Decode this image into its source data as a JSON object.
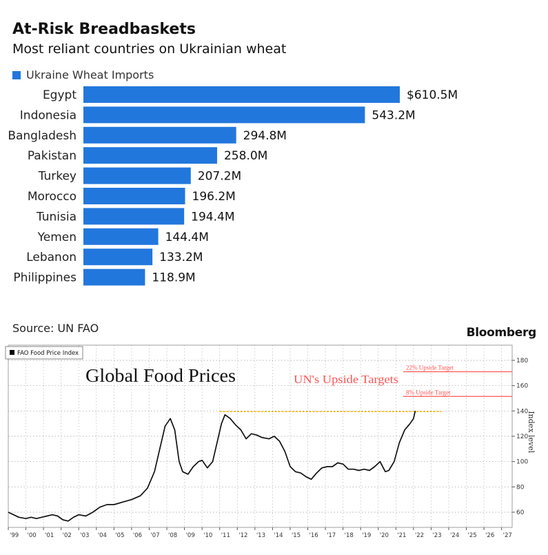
{
  "header": {
    "title": "At-Risk Breadbaskets",
    "subtitle": "Most reliant countries on Ukrainian wheat",
    "legend_label": "Ukraine Wheat Imports"
  },
  "footer": {
    "source": "Source: UN FAO",
    "brand": "Bloomberg"
  },
  "colors": {
    "bar": "#2277dd",
    "line": "#111111",
    "target": "#ff5555",
    "reference": "#ffb000"
  },
  "chart_data": [
    {
      "type": "bar",
      "orientation": "horizontal",
      "title": "At-Risk Breadbaskets",
      "subtitle": "Most reliant countries on Ukrainian wheat",
      "legend": [
        "Ukraine Wheat Imports"
      ],
      "categories": [
        "Egypt",
        "Indonesia",
        "Bangladesh",
        "Pakistan",
        "Turkey",
        "Morocco",
        "Tunisia",
        "Yemen",
        "Lebanon",
        "Philippines"
      ],
      "values": [
        610.5,
        543.2,
        294.8,
        258.0,
        207.2,
        196.2,
        194.4,
        144.4,
        133.2,
        118.9
      ],
      "value_labels": [
        "$610.5M",
        "543.2M",
        "294.8M",
        "258.0M",
        "207.2M",
        "196.2M",
        "194.4M",
        "144.4M",
        "133.2M",
        "118.9M"
      ],
      "unit": "USD millions"
    },
    {
      "type": "line",
      "title": "Global Food Prices",
      "legend": [
        "FAO Food Price Index"
      ],
      "ylabel": "Index level",
      "ylim": [
        48,
        192
      ],
      "xlim": [
        1999,
        2027.6
      ],
      "yticks": [
        60,
        80,
        100,
        120,
        140,
        160,
        180
      ],
      "xticks": [
        "'99",
        "'00",
        "'01",
        "'02",
        "'03",
        "'04",
        "'05",
        "'06",
        "'07",
        "'08",
        "'09",
        "'10",
        "'11",
        "'12",
        "'13",
        "'14",
        "'15",
        "'16",
        "'17",
        "'18",
        "'19",
        "'20",
        "'21",
        "'22",
        "'23",
        "'24",
        "'25",
        "'26",
        "'27"
      ],
      "series": [
        {
          "name": "FAO Food Price Index",
          "x": [
            1999.0,
            1999.3,
            1999.6,
            2000.0,
            2000.3,
            2000.6,
            2000.9,
            2001.2,
            2001.5,
            2001.8,
            2002.1,
            2002.4,
            2002.7,
            2003.0,
            2003.4,
            2003.8,
            2004.2,
            2004.6,
            2005.0,
            2005.5,
            2006.0,
            2006.5,
            2006.9,
            2007.3,
            2007.6,
            2007.9,
            2008.2,
            2008.45,
            2008.7,
            2008.9,
            2009.2,
            2009.5,
            2009.8,
            2010.0,
            2010.3,
            2010.6,
            2010.9,
            2011.1,
            2011.3,
            2011.6,
            2011.9,
            2012.2,
            2012.5,
            2012.8,
            2013.1,
            2013.4,
            2013.8,
            2014.1,
            2014.4,
            2014.7,
            2015.0,
            2015.3,
            2015.6,
            2015.9,
            2016.2,
            2016.5,
            2016.8,
            2017.1,
            2017.4,
            2017.7,
            2018.0,
            2018.3,
            2018.6,
            2018.9,
            2019.2,
            2019.5,
            2019.8,
            2020.1,
            2020.4,
            2020.6,
            2020.9,
            2021.2,
            2021.5,
            2021.8,
            2022.0,
            2022.1
          ],
          "y": [
            60,
            58,
            56,
            55,
            56,
            55,
            56,
            57,
            58,
            57,
            54,
            53,
            56,
            58,
            57,
            60,
            64,
            66,
            66,
            68,
            70,
            73,
            79,
            92,
            110,
            128,
            134,
            125,
            100,
            92,
            90,
            96,
            100,
            101,
            95,
            100,
            118,
            130,
            137,
            134,
            129,
            125,
            118,
            122,
            121,
            119,
            118,
            120,
            116,
            108,
            96,
            92,
            91,
            88,
            86,
            91,
            95,
            96,
            96,
            99,
            98,
            94,
            94,
            93,
            94,
            93,
            96,
            100,
            92,
            93,
            100,
            115,
            125,
            130,
            134,
            140
          ],
          "line_color": "#111111"
        }
      ],
      "annotations": [
        {
          "text": "UN's Upside Targets"
        },
        {
          "text": "22% Upside Target",
          "y": 171
        },
        {
          "text": "8% Upside Target",
          "y": 151.5
        },
        {
          "type": "reference_line",
          "y": 139.5,
          "x_range": [
            2011.0,
            2023.6
          ]
        }
      ]
    }
  ]
}
